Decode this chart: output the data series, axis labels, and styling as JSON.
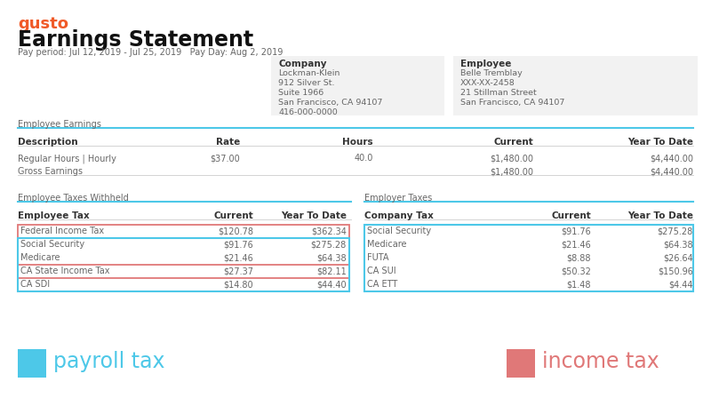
{
  "bg_color": "#ffffff",
  "gusto_color": "#f05a28",
  "gusto_text": "gusto",
  "title": "Earnings Statement",
  "pay_period": "Pay period: Jul 12, 2019 - Jul 25, 2019   Pay Day: Aug 2, 2019",
  "company_label": "Company",
  "company_lines": [
    "Lockman-Klein",
    "912 Silver St.",
    "Suite 1966",
    "San Francisco, CA 94107",
    "416-000-0000"
  ],
  "employee_label": "Employee",
  "employee_lines": [
    "Belle Tremblay",
    "XXX-XX-2458",
    "21 Stillman Street",
    "San Francisco, CA 94107"
  ],
  "info_bg": "#f2f2f2",
  "section_earnings": "Employee Earnings",
  "earnings_headers": [
    "Description",
    "Rate",
    "Hours",
    "Current",
    "Year To Date"
  ],
  "earnings_rows": [
    [
      "Regular Hours | Hourly",
      "$37.00",
      "40.0",
      "$1,480.00",
      "$4,440.00"
    ],
    [
      "Gross Earnings",
      "",
      "",
      "$1,480.00",
      "$4,440.00"
    ]
  ],
  "section_emp_taxes": "Employee Taxes Withheld",
  "emp_tax_headers": [
    "Employee Tax",
    "Current",
    "Year To Date"
  ],
  "emp_tax_rows": [
    [
      "Federal Income Tax",
      "$120.78",
      "$362.34"
    ],
    [
      "Social Security",
      "$91.76",
      "$275.28"
    ],
    [
      "Medicare",
      "$21.46",
      "$64.38"
    ],
    [
      "CA State Income Tax",
      "$27.37",
      "$82.11"
    ],
    [
      "CA SDI",
      "$14.80",
      "$44.40"
    ]
  ],
  "income_tax_rows": [
    0,
    3
  ],
  "payroll_tax_rows": [
    1,
    2,
    4
  ],
  "section_employer_taxes": "Employer Taxes",
  "employer_tax_headers": [
    "Company Tax",
    "Current",
    "Year To Date"
  ],
  "employer_tax_rows": [
    [
      "Social Security",
      "$91.76",
      "$275.28"
    ],
    [
      "Medicare",
      "$21.46",
      "$64.38"
    ],
    [
      "FUTA",
      "$8.88",
      "$26.64"
    ],
    [
      "CA SUI",
      "$50.32",
      "$150.96"
    ],
    [
      "CA ETT",
      "$1.48",
      "$4.44"
    ]
  ],
  "payroll_color": "#4dc8e8",
  "income_color": "#e07878",
  "header_line_color": "#4dc8e8",
  "text_color": "#666666",
  "bold_color": "#333333",
  "legend_payroll_text": "payroll tax",
  "legend_income_text": "income tax"
}
